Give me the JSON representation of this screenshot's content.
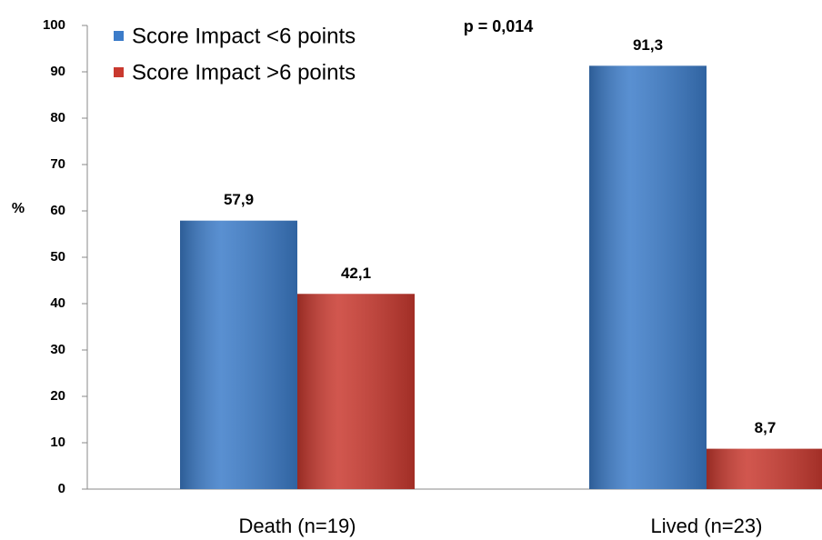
{
  "chart_data": {
    "type": "bar",
    "categories": [
      "Death (n=19)",
      "Lived (n=23)"
    ],
    "series": [
      {
        "name": "Score Impact <6 points",
        "color": "#3c7cc9",
        "values": [
          57.9,
          91.3
        ],
        "value_labels": [
          "57,9",
          "91,3"
        ]
      },
      {
        "name": "Score Impact >6 points",
        "color": "#c9392f",
        "values": [
          42.1,
          8.7
        ],
        "value_labels": [
          "42,1",
          "8,7"
        ]
      }
    ],
    "y_label": "%",
    "annotation": "p = 0,014",
    "ylim": [
      0,
      100
    ],
    "yticks": [
      0,
      10,
      20,
      30,
      40,
      50,
      60,
      70,
      80,
      90,
      100
    ],
    "grid": false,
    "legend": "top-left"
  }
}
